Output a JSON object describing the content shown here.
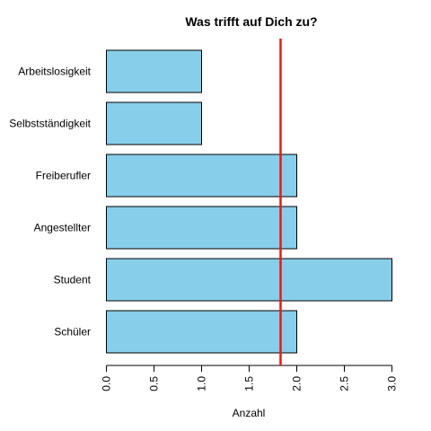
{
  "chart_data": {
    "type": "bar",
    "orientation": "horizontal",
    "title": "Was trifft auf Dich zu?",
    "xlabel": "Anzahl",
    "ylabel": "",
    "categories": [
      "Schüler",
      "Student",
      "Angestellter",
      "Freiberufler",
      "Selbstständigkeit",
      "Arbeitslosigkeit"
    ],
    "values": [
      2,
      3,
      2,
      2,
      1,
      1
    ],
    "xlim": [
      0,
      3
    ],
    "ticks": [
      "0.0",
      "0.5",
      "1.0",
      "1.5",
      "2.0",
      "2.5",
      "3.0"
    ],
    "tick_values": [
      0,
      0.5,
      1.0,
      1.5,
      2.0,
      2.5,
      3.0
    ],
    "reference_line": {
      "value": 1.83,
      "color": "#e31a1c"
    },
    "bar_color": "#87ceeb",
    "bar_border": "#000000",
    "grid": false,
    "legend": "none"
  }
}
